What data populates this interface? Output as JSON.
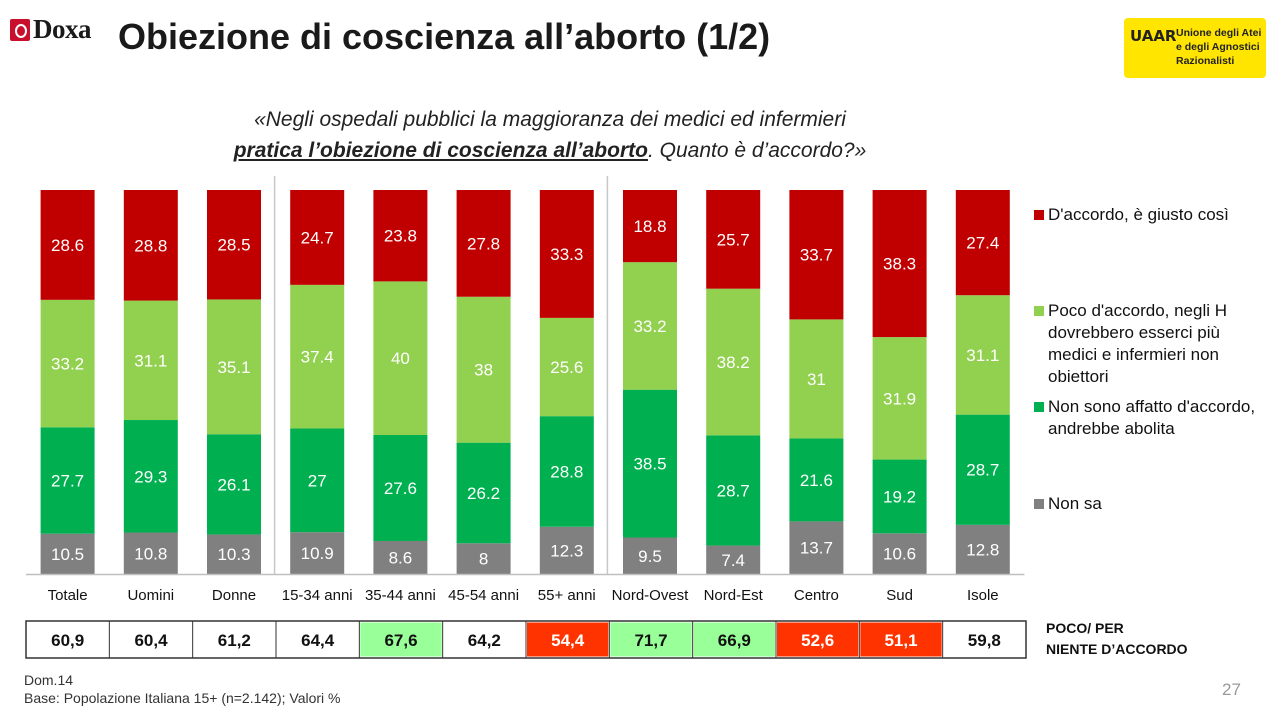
{
  "header": {
    "brand": "Doxa",
    "title": "Obiezione di coscienza all’aborto (1/2)",
    "logo_mark": "UAAR",
    "logo_text_1": "Unione degli Atei",
    "logo_text_2": "e degli Agnostici",
    "logo_text_3": "Razionalisti"
  },
  "question": {
    "line1": "«Negli ospedali pubblici la maggioranza dei medici ed infermieri",
    "line2_underlined": "pratica l’obiezione di coscienza all’aborto",
    "line2_rest": ". Quanto è d’accordo?»"
  },
  "colors": {
    "d_accordo": "#c00000",
    "poco": "#92d050",
    "non_affatto": "#00b050",
    "non_sa": "#808080",
    "sum_green": "#99ff99",
    "sum_red": "#ff3300"
  },
  "legend": {
    "d_accordo": "D'accordo, è giusto così",
    "poco": "Poco d'accordo, negli H dovrebbero esserci più medici e infermieri non obiettori",
    "non_affatto": "Non sono affatto d'accordo, andrebbe abolita",
    "non_sa": "Non sa"
  },
  "chart_data": {
    "type": "bar",
    "stacked": true,
    "categories": [
      "Totale",
      "Uomini",
      "Donne",
      "15-34 anni",
      "35-44 anni",
      "45-54 anni",
      "55+ anni",
      "Nord-Ovest",
      "Nord-Est",
      "Centro",
      "Sud",
      "Isole"
    ],
    "series": [
      {
        "name": "Non sa",
        "values": [
          10.5,
          10.8,
          10.3,
          10.9,
          8.6,
          8.0,
          12.3,
          9.5,
          7.4,
          13.7,
          10.6,
          12.8
        ]
      },
      {
        "name": "Non sono affatto d'accordo, andrebbe abolita",
        "values": [
          27.7,
          29.3,
          26.1,
          27.0,
          27.6,
          26.2,
          28.8,
          38.5,
          28.7,
          21.6,
          19.2,
          28.7
        ]
      },
      {
        "name": "Poco d'accordo, negli H dovrebbero esserci più medici e infermieri non obiettori",
        "values": [
          33.2,
          31.1,
          35.1,
          37.4,
          40.0,
          38.0,
          25.6,
          33.2,
          38.2,
          31.0,
          31.9,
          31.1
        ]
      },
      {
        "name": "D'accordo, è giusto così",
        "values": [
          28.6,
          28.8,
          28.5,
          24.7,
          23.8,
          27.8,
          33.3,
          18.8,
          25.7,
          33.7,
          38.3,
          27.4
        ]
      }
    ],
    "data_labels": true,
    "ylim": [
      0,
      100
    ],
    "legend_position": "right"
  },
  "summary_row": {
    "label_line1": "POCO/ PER",
    "label_line2": "NIENTE D’ACCORDO",
    "values": [
      "60,9",
      "60,4",
      "61,2",
      "64,4",
      "67,6",
      "64,2",
      "54,4",
      "71,7",
      "66,9",
      "52,6",
      "51,1",
      "59,8"
    ],
    "highlight": [
      "none",
      "none",
      "none",
      "none",
      "green",
      "none",
      "red",
      "green",
      "green",
      "red",
      "red",
      "none"
    ]
  },
  "footer": {
    "code": "Dom.14",
    "base": "Base: Popolazione Italiana 15+ (n=2.142); Valori %",
    "page": "27"
  }
}
